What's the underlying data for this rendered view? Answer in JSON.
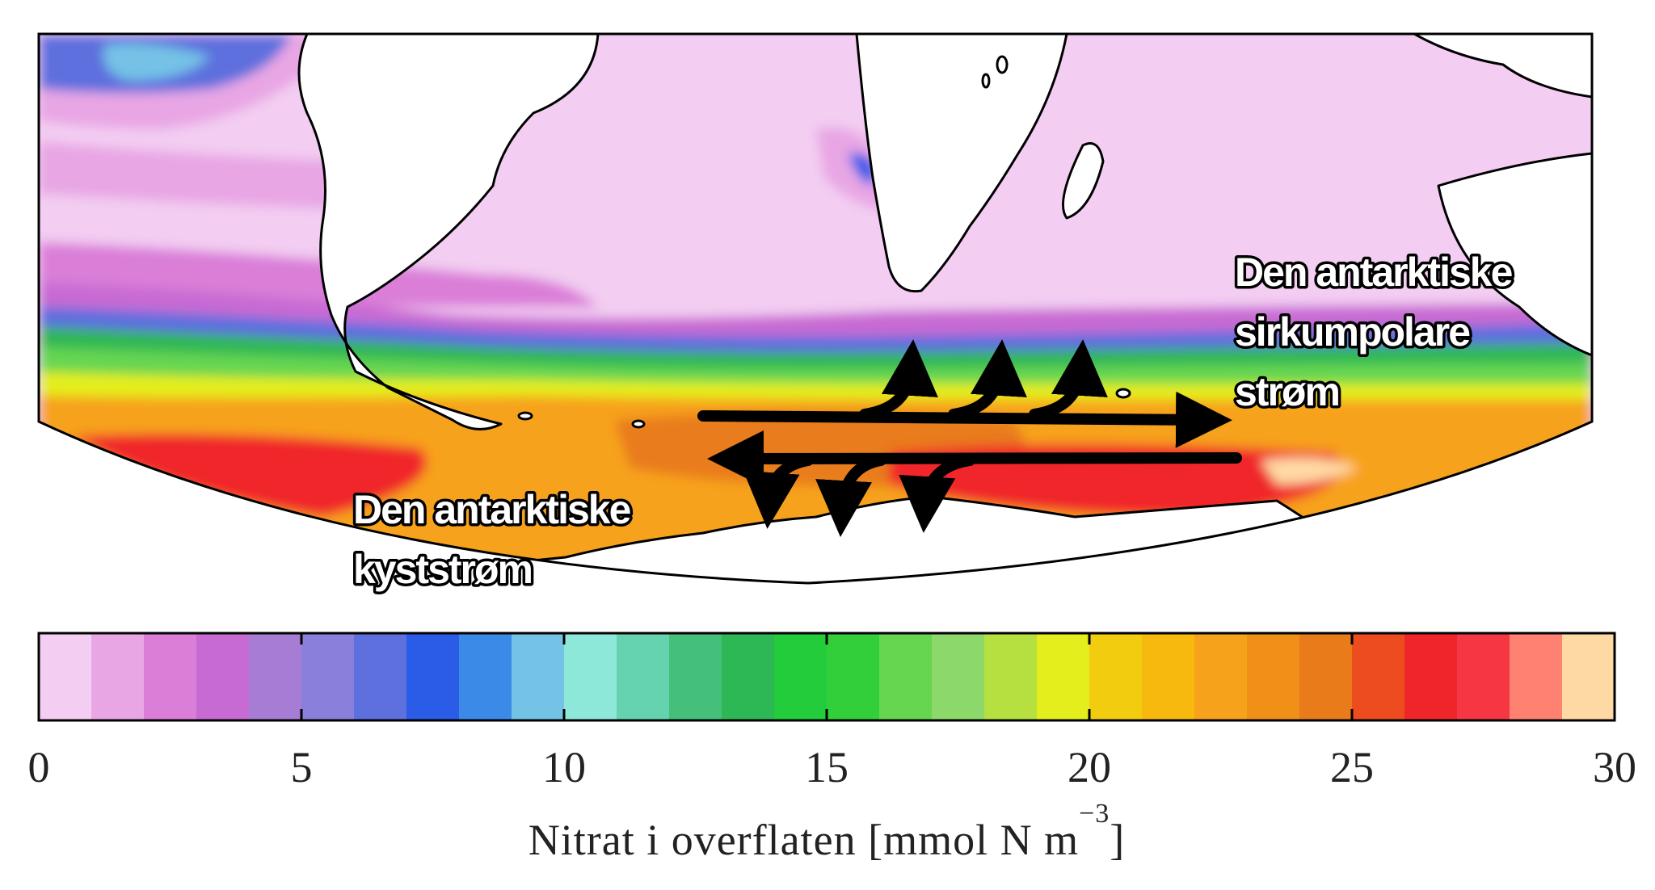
{
  "labels": {
    "acc_line1": "Den antarktiske",
    "acc_line2": "sirkumpolare",
    "acc_line3": "strøm",
    "coastal_line1": "Den antarktiske",
    "coastal_line2": "kyststrøm"
  },
  "colorbar": {
    "min": 0,
    "max": 30,
    "ticks": [
      "0",
      "5",
      "10",
      "15",
      "20",
      "25",
      "30"
    ],
    "title": "Nitrat i overflaten [mmol N m",
    "title_sup": "−3",
    "title_close": "]",
    "colors": [
      "#f3cdf2",
      "#e8a6e4",
      "#da7ed8",
      "#c86ad3",
      "#a67cd5",
      "#8a80dc",
      "#5d70de",
      "#2a5ce8",
      "#3b8ae8",
      "#74c2e6",
      "#8ee8da",
      "#66d3b0",
      "#45c07a",
      "#2eb755",
      "#22cc3a",
      "#33cf3a",
      "#66d651",
      "#8dd86b",
      "#b6e03f",
      "#e4ee1c",
      "#f2cc0f",
      "#f8b90e",
      "#f7a21b",
      "#f09017",
      "#e97b1b",
      "#ec4c1e",
      "#f0252a",
      "#f53744",
      "#ff8172",
      "#ffd9a4"
    ]
  },
  "colors": {
    "land": "#ffffff",
    "coast": "#000000",
    "arrows": "#000000"
  }
}
